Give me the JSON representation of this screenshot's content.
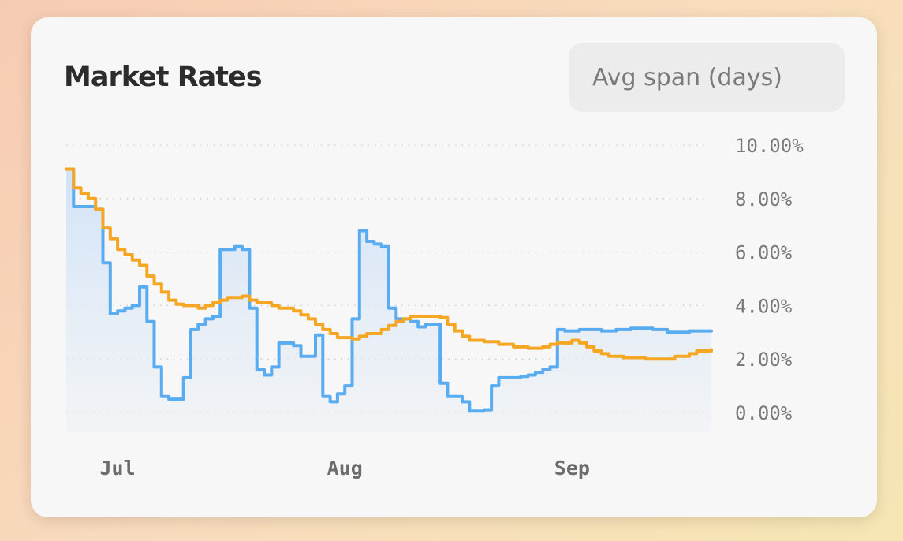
{
  "card": {
    "title": "Market Rates",
    "avg_span_placeholder": "Avg span (days)"
  },
  "colors": {
    "rate": "#5aacf0",
    "average": "#f5a623",
    "area_top": "#cfe2f7",
    "grid": "#c9c9c9"
  },
  "chart_data": {
    "type": "line",
    "title": "Market Rates",
    "xlabel": "",
    "ylabel": "",
    "ylim": [
      0,
      10
    ],
    "y_ticks": [
      {
        "value": 0,
        "label": "0.00%"
      },
      {
        "value": 2,
        "label": "2.00%"
      },
      {
        "value": 4,
        "label": "4.00%"
      },
      {
        "value": 6,
        "label": "6.00%"
      },
      {
        "value": 8,
        "label": "8.00%"
      },
      {
        "value": 10,
        "label": "10.00%"
      }
    ],
    "x_range": [
      "2023-06-24",
      "2023-09-20"
    ],
    "x_ticks": [
      {
        "date": "2023-07-01",
        "label": "Jul"
      },
      {
        "date": "2023-08-01",
        "label": "Aug"
      },
      {
        "date": "2023-09-01",
        "label": "Sep"
      }
    ],
    "grid": true,
    "step": true,
    "series": [
      {
        "key": "rate",
        "color": "#5aacf0",
        "fill": true,
        "points": [
          [
            "2023-06-24",
            9.1
          ],
          [
            "2023-06-25",
            7.7
          ],
          [
            "2023-06-28",
            7.6
          ],
          [
            "2023-06-29",
            5.6
          ],
          [
            "2023-06-30",
            3.7
          ],
          [
            "2023-07-01",
            3.8
          ],
          [
            "2023-07-02",
            3.9
          ],
          [
            "2023-07-03",
            4.0
          ],
          [
            "2023-07-04",
            4.7
          ],
          [
            "2023-07-05",
            3.4
          ],
          [
            "2023-07-06",
            1.7
          ],
          [
            "2023-07-07",
            0.6
          ],
          [
            "2023-07-08",
            0.5
          ],
          [
            "2023-07-09",
            0.5
          ],
          [
            "2023-07-10",
            1.3
          ],
          [
            "2023-07-11",
            3.1
          ],
          [
            "2023-07-12",
            3.3
          ],
          [
            "2023-07-13",
            3.5
          ],
          [
            "2023-07-14",
            3.6
          ],
          [
            "2023-07-15",
            6.1
          ],
          [
            "2023-07-16",
            6.1
          ],
          [
            "2023-07-17",
            6.2
          ],
          [
            "2023-07-18",
            6.1
          ],
          [
            "2023-07-19",
            3.9
          ],
          [
            "2023-07-20",
            1.6
          ],
          [
            "2023-07-21",
            1.4
          ],
          [
            "2023-07-22",
            1.7
          ],
          [
            "2023-07-23",
            2.6
          ],
          [
            "2023-07-24",
            2.6
          ],
          [
            "2023-07-25",
            2.5
          ],
          [
            "2023-07-26",
            2.1
          ],
          [
            "2023-07-27",
            2.1
          ],
          [
            "2023-07-28",
            2.9
          ],
          [
            "2023-07-29",
            0.6
          ],
          [
            "2023-07-30",
            0.4
          ],
          [
            "2023-07-31",
            0.7
          ],
          [
            "2023-08-01",
            1.0
          ],
          [
            "2023-08-02",
            3.5
          ],
          [
            "2023-08-03",
            6.8
          ],
          [
            "2023-08-04",
            6.4
          ],
          [
            "2023-08-05",
            6.3
          ],
          [
            "2023-08-06",
            6.2
          ],
          [
            "2023-08-07",
            3.9
          ],
          [
            "2023-08-08",
            3.5
          ],
          [
            "2023-08-09",
            3.5
          ],
          [
            "2023-08-10",
            3.4
          ],
          [
            "2023-08-11",
            3.2
          ],
          [
            "2023-08-12",
            3.3
          ],
          [
            "2023-08-13",
            3.3
          ],
          [
            "2023-08-14",
            1.1
          ],
          [
            "2023-08-15",
            0.6
          ],
          [
            "2023-08-16",
            0.6
          ],
          [
            "2023-08-17",
            0.4
          ],
          [
            "2023-08-18",
            0.05
          ],
          [
            "2023-08-19",
            0.05
          ],
          [
            "2023-08-20",
            0.1
          ],
          [
            "2023-08-21",
            1.0
          ],
          [
            "2023-08-22",
            1.3
          ],
          [
            "2023-08-24",
            1.3
          ],
          [
            "2023-08-25",
            1.35
          ],
          [
            "2023-08-26",
            1.4
          ],
          [
            "2023-08-27",
            1.5
          ],
          [
            "2023-08-28",
            1.6
          ],
          [
            "2023-08-29",
            1.7
          ],
          [
            "2023-08-30",
            3.1
          ],
          [
            "2023-08-31",
            3.05
          ],
          [
            "2023-09-02",
            3.1
          ],
          [
            "2023-09-05",
            3.05
          ],
          [
            "2023-09-07",
            3.1
          ],
          [
            "2023-09-09",
            3.15
          ],
          [
            "2023-09-12",
            3.1
          ],
          [
            "2023-09-14",
            3.0
          ],
          [
            "2023-09-17",
            3.05
          ],
          [
            "2023-09-20",
            3.05
          ]
        ]
      },
      {
        "key": "average",
        "color": "#f5a623",
        "fill": false,
        "points": [
          [
            "2023-06-24",
            9.1
          ],
          [
            "2023-06-25",
            8.4
          ],
          [
            "2023-06-26",
            8.2
          ],
          [
            "2023-06-27",
            8.0
          ],
          [
            "2023-06-28",
            7.6
          ],
          [
            "2023-06-29",
            6.9
          ],
          [
            "2023-06-30",
            6.5
          ],
          [
            "2023-07-01",
            6.1
          ],
          [
            "2023-07-02",
            5.9
          ],
          [
            "2023-07-03",
            5.7
          ],
          [
            "2023-07-04",
            5.5
          ],
          [
            "2023-07-05",
            5.1
          ],
          [
            "2023-07-06",
            4.8
          ],
          [
            "2023-07-07",
            4.5
          ],
          [
            "2023-07-08",
            4.2
          ],
          [
            "2023-07-09",
            4.05
          ],
          [
            "2023-07-10",
            4.0
          ],
          [
            "2023-07-12",
            3.9
          ],
          [
            "2023-07-13",
            4.0
          ],
          [
            "2023-07-14",
            4.1
          ],
          [
            "2023-07-15",
            4.2
          ],
          [
            "2023-07-16",
            4.3
          ],
          [
            "2023-07-18",
            4.35
          ],
          [
            "2023-07-19",
            4.2
          ],
          [
            "2023-07-20",
            4.1
          ],
          [
            "2023-07-22",
            4.0
          ],
          [
            "2023-07-23",
            3.9
          ],
          [
            "2023-07-25",
            3.8
          ],
          [
            "2023-07-26",
            3.65
          ],
          [
            "2023-07-27",
            3.5
          ],
          [
            "2023-07-28",
            3.3
          ],
          [
            "2023-07-29",
            3.1
          ],
          [
            "2023-07-30",
            2.95
          ],
          [
            "2023-07-31",
            2.8
          ],
          [
            "2023-08-02",
            2.75
          ],
          [
            "2023-08-03",
            2.85
          ],
          [
            "2023-08-04",
            2.95
          ],
          [
            "2023-08-06",
            3.1
          ],
          [
            "2023-08-07",
            3.25
          ],
          [
            "2023-08-08",
            3.4
          ],
          [
            "2023-08-09",
            3.5
          ],
          [
            "2023-08-10",
            3.6
          ],
          [
            "2023-08-14",
            3.55
          ],
          [
            "2023-08-15",
            3.3
          ],
          [
            "2023-08-16",
            3.05
          ],
          [
            "2023-08-17",
            2.85
          ],
          [
            "2023-08-18",
            2.7
          ],
          [
            "2023-08-20",
            2.65
          ],
          [
            "2023-08-22",
            2.55
          ],
          [
            "2023-08-24",
            2.45
          ],
          [
            "2023-08-26",
            2.4
          ],
          [
            "2023-08-28",
            2.45
          ],
          [
            "2023-08-29",
            2.55
          ],
          [
            "2023-08-30",
            2.6
          ],
          [
            "2023-09-01",
            2.7
          ],
          [
            "2023-09-02",
            2.6
          ],
          [
            "2023-09-03",
            2.45
          ],
          [
            "2023-09-04",
            2.3
          ],
          [
            "2023-09-05",
            2.2
          ],
          [
            "2023-09-06",
            2.1
          ],
          [
            "2023-09-08",
            2.05
          ],
          [
            "2023-09-11",
            2.0
          ],
          [
            "2023-09-15",
            2.1
          ],
          [
            "2023-09-17",
            2.2
          ],
          [
            "2023-09-18",
            2.3
          ],
          [
            "2023-09-20",
            2.35
          ]
        ]
      }
    ]
  }
}
